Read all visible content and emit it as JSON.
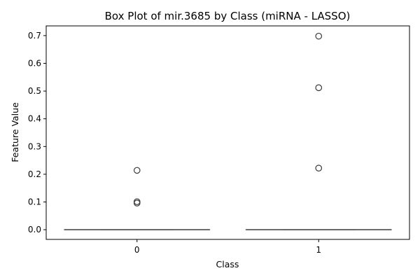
{
  "chart_data": {
    "type": "box",
    "title": "Box Plot of mir.3685 by Class (miRNA - LASSO)",
    "xlabel": "Class",
    "ylabel": "Feature Value",
    "categories": [
      "0",
      "1"
    ],
    "ylim": [
      -0.035,
      0.735
    ],
    "yticks": [
      0.0,
      0.1,
      0.2,
      0.3,
      0.4,
      0.5,
      0.6,
      0.7
    ],
    "ytick_labels": [
      "0.0",
      "0.1",
      "0.2",
      "0.3",
      "0.4",
      "0.5",
      "0.6",
      "0.7"
    ],
    "boxes": [
      {
        "category": "0",
        "q1": 0.0,
        "median": 0.0,
        "q3": 0.0,
        "whisker_low": 0.0,
        "whisker_high": 0.0,
        "outliers": [
          0.214,
          0.101,
          0.096
        ]
      },
      {
        "category": "1",
        "q1": 0.0,
        "median": 0.0,
        "q3": 0.0,
        "whisker_low": 0.0,
        "whisker_high": 0.0,
        "outliers": [
          0.698,
          0.512,
          0.222
        ]
      }
    ],
    "box_color": "#1f77b4",
    "line_color": "#444444",
    "grid": false,
    "legend": "none"
  }
}
